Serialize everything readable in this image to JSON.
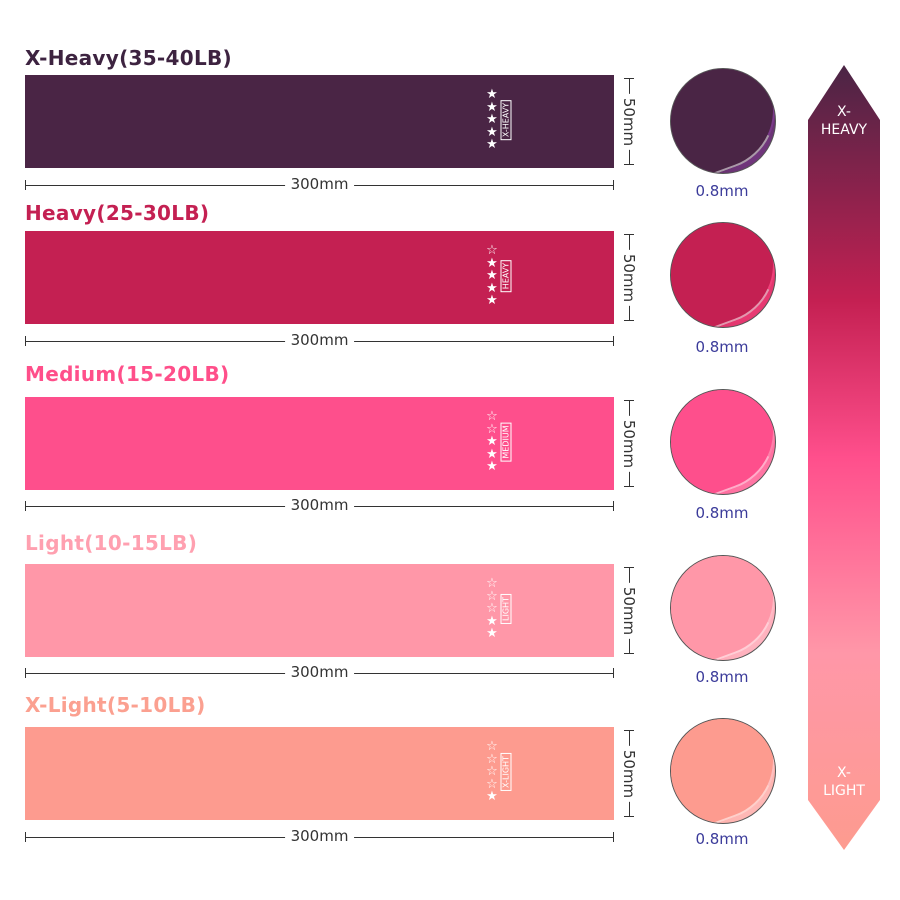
{
  "bands": [
    {
      "title": "X-Heavy(35-40LB)",
      "level": "X-HEAVY",
      "rating": 5,
      "max_rating": 5,
      "length": "300mm",
      "width": "50mm",
      "thickness": "0.8mm",
      "color": "#4a2545",
      "title_color": "#3d2340",
      "light": "#7a3a8a"
    },
    {
      "title": "Heavy(25-30LB)",
      "level": "HEAVY",
      "rating": 4,
      "max_rating": 5,
      "length": "300mm",
      "width": "50mm",
      "thickness": "0.8mm",
      "color": "#c42052",
      "title_color": "#c42052",
      "light": "#f0407a"
    },
    {
      "title": "Medium(15-20LB)",
      "level": "MEDIUM",
      "rating": 3,
      "max_rating": 5,
      "length": "300mm",
      "width": "50mm",
      "thickness": "0.8mm",
      "color": "#fe4f8c",
      "title_color": "#ff4f8a",
      "light": "#ff80aa"
    },
    {
      "title": "Light(10-15LB)",
      "level": "LIGHT",
      "rating": 2,
      "max_rating": 5,
      "length": "300mm",
      "width": "50mm",
      "thickness": "0.8mm",
      "color": "#ff97a8",
      "title_color": "#ffa0b0",
      "light": "#ffbac5"
    },
    {
      "title": "X-Light(5-10LB)",
      "level": "X-LIGHT",
      "rating": 1,
      "max_rating": 5,
      "length": "300mm",
      "width": "50mm",
      "thickness": "0.8mm",
      "color": "#fd9b8f",
      "title_color": "#fba090",
      "light": "#ffc0c0"
    }
  ],
  "scale": {
    "top_label": "X-HEAVY",
    "top_line1": "X-",
    "top_line2": "HEAVY",
    "bottom_line1": "X-",
    "bottom_line2": "LIGHT",
    "colors": [
      "#4a2545",
      "#c42052",
      "#ff4f8c",
      "#ff97a8",
      "#fd9b8f"
    ]
  }
}
